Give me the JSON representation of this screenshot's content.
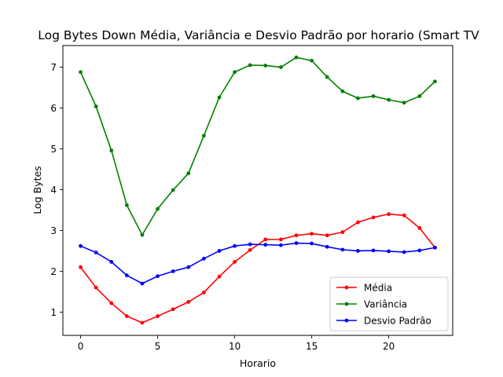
{
  "chart_data": {
    "type": "line",
    "title": "Log Bytes Down Média, Variância e Desvio Padrão por horario (Smart TV",
    "xlabel": "Horario",
    "ylabel": "Log Bytes",
    "xlim": [
      -1.15,
      24.15
    ],
    "ylim": [
      0.43,
      7.53
    ],
    "xticks": [
      0,
      5,
      10,
      15,
      20
    ],
    "yticks": [
      1,
      2,
      3,
      4,
      5,
      6,
      7
    ],
    "legend_position": "lower-right",
    "x": [
      0,
      1,
      2,
      3,
      4,
      5,
      6,
      7,
      8,
      9,
      10,
      11,
      12,
      13,
      14,
      15,
      16,
      17,
      18,
      19,
      20,
      21,
      22,
      23
    ],
    "series": [
      {
        "name": "Média",
        "color": "#ff0000",
        "values": [
          2.1,
          1.6,
          1.22,
          0.9,
          0.74,
          0.9,
          1.07,
          1.25,
          1.48,
          1.87,
          2.23,
          2.52,
          2.78,
          2.78,
          2.88,
          2.92,
          2.88,
          2.96,
          3.2,
          3.32,
          3.4,
          3.37,
          3.06,
          2.58
        ]
      },
      {
        "name": "Variância",
        "color": "#008000",
        "values": [
          6.88,
          6.04,
          4.96,
          3.62,
          2.89,
          3.53,
          3.99,
          4.4,
          5.32,
          6.26,
          6.88,
          7.05,
          7.04,
          7.0,
          7.24,
          7.16,
          6.76,
          6.41,
          6.24,
          6.29,
          6.2,
          6.13,
          6.29,
          6.65
        ]
      },
      {
        "name": "Desvio Padrão",
        "color": "#0000ff",
        "values": [
          2.62,
          2.46,
          2.23,
          1.9,
          1.7,
          1.88,
          2.0,
          2.1,
          2.31,
          2.5,
          2.62,
          2.66,
          2.65,
          2.64,
          2.69,
          2.68,
          2.6,
          2.53,
          2.5,
          2.51,
          2.49,
          2.47,
          2.51,
          2.58
        ]
      }
    ]
  }
}
